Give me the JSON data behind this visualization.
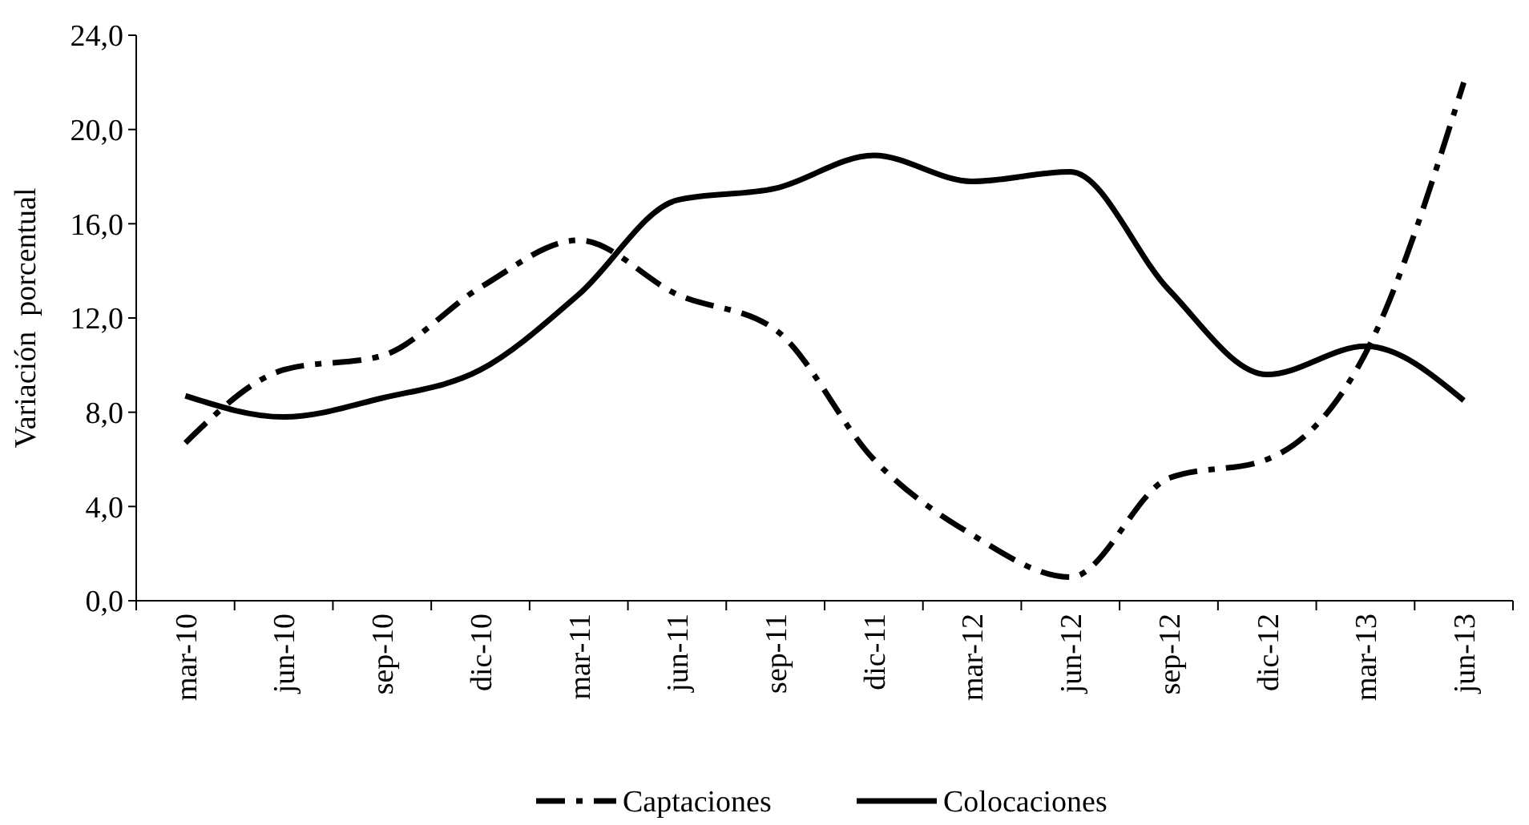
{
  "chart_data": {
    "type": "line",
    "ylabel": "Variación  porcentual",
    "categories": [
      "mar-10",
      "jun-10",
      "sep-10",
      "dic-10",
      "mar-11",
      "jun-11",
      "sep-11",
      "dic-11",
      "mar-12",
      "jun-12",
      "sep-12",
      "dic-12",
      "mar-13",
      "jun-13"
    ],
    "series": [
      {
        "name": "Captaciones",
        "color": "#000000",
        "line_style": "dashed",
        "values": [
          6.7,
          9.8,
          10.4,
          13.3,
          15.3,
          13.0,
          11.5,
          6.0,
          2.8,
          1.0,
          5.2,
          6.0,
          10.5,
          22.0
        ]
      },
      {
        "name": "Colocaciones",
        "color": "#000000",
        "line_style": "solid",
        "values": [
          8.7,
          7.8,
          8.6,
          9.8,
          13.0,
          17.0,
          17.5,
          18.9,
          17.8,
          18.2,
          13.2,
          9.6,
          10.8,
          8.5
        ]
      }
    ],
    "ylim": [
      0,
      24
    ],
    "yticks": [
      {
        "value": 0,
        "label": "0,0"
      },
      {
        "value": 4,
        "label": "4,0"
      },
      {
        "value": 8,
        "label": "8,0"
      },
      {
        "value": 12,
        "label": "12,0"
      },
      {
        "value": 16,
        "label": "16,0"
      },
      {
        "value": 20,
        "label": "20,0"
      },
      {
        "value": 24,
        "label": "24,0"
      }
    ],
    "grid": false,
    "legend": "bottom",
    "marker": "none"
  }
}
